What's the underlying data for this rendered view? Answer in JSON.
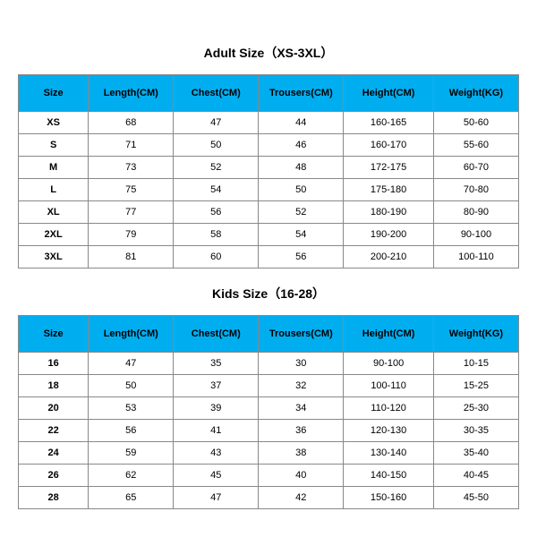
{
  "header_bg": "#00aef0",
  "header_fg": "#000000",
  "border_color": "#888888",
  "adult": {
    "title": "Adult Size（XS-3XL）",
    "columns": [
      "Size",
      "Length(CM)",
      "Chest(CM)",
      "Trousers(CM)",
      "Height(CM)",
      "Weight(KG)"
    ],
    "rows": [
      [
        "XS",
        "68",
        "47",
        "44",
        "160-165",
        "50-60"
      ],
      [
        "S",
        "71",
        "50",
        "46",
        "160-170",
        "55-60"
      ],
      [
        "M",
        "73",
        "52",
        "48",
        "172-175",
        "60-70"
      ],
      [
        "L",
        "75",
        "54",
        "50",
        "175-180",
        "70-80"
      ],
      [
        "XL",
        "77",
        "56",
        "52",
        "180-190",
        "80-90"
      ],
      [
        "2XL",
        "79",
        "58",
        "54",
        "190-200",
        "90-100"
      ],
      [
        "3XL",
        "81",
        "60",
        "56",
        "200-210",
        "100-110"
      ]
    ]
  },
  "kids": {
    "title": "Kids Size（16-28）",
    "columns": [
      "Size",
      "Length(CM)",
      "Chest(CM)",
      "Trousers(CM)",
      "Height(CM)",
      "Weight(KG)"
    ],
    "rows": [
      [
        "16",
        "47",
        "35",
        "30",
        "90-100",
        "10-15"
      ],
      [
        "18",
        "50",
        "37",
        "32",
        "100-110",
        "15-25"
      ],
      [
        "20",
        "53",
        "39",
        "34",
        "110-120",
        "25-30"
      ],
      [
        "22",
        "56",
        "41",
        "36",
        "120-130",
        "30-35"
      ],
      [
        "24",
        "59",
        "43",
        "38",
        "130-140",
        "35-40"
      ],
      [
        "26",
        "62",
        "45",
        "40",
        "140-150",
        "40-45"
      ],
      [
        "28",
        "65",
        "47",
        "42",
        "150-160",
        "45-50"
      ]
    ]
  },
  "col_widths_pct": [
    14,
    17,
    17,
    17,
    18,
    17
  ]
}
